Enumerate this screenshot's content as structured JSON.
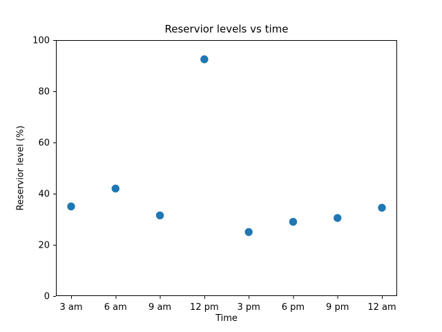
{
  "figure": {
    "background": "#ffffff"
  },
  "chart_data": {
    "type": "scatter",
    "title": "Reservior levels vs time",
    "xlabel": "Time",
    "ylabel": "Reservior level (%)",
    "categories": [
      "3 am",
      "6 am",
      "9 am",
      "12 pm",
      "3 pm",
      "6 pm",
      "9 pm",
      "12 am"
    ],
    "values": [
      35,
      42,
      31.5,
      92.5,
      25,
      29,
      30.5,
      34.5
    ],
    "ylim": [
      0,
      100
    ],
    "yticks": [
      0,
      20,
      40,
      60,
      80,
      100
    ],
    "grid": false,
    "legend": null,
    "marker_color": "#1f77b4",
    "axis_color": "#000000"
  }
}
